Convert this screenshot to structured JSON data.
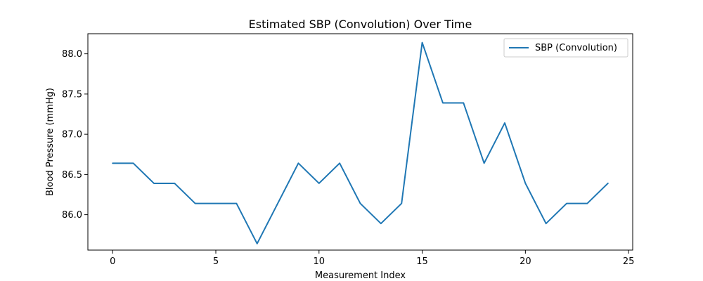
{
  "chart_data": {
    "type": "line",
    "title": "Estimated SBP (Convolution) Over Time",
    "xlabel": "Measurement Index",
    "ylabel": "Blood Pressure (mmHg)",
    "xlim": [
      -1.2,
      25.2
    ],
    "ylim": [
      85.56,
      88.25
    ],
    "x_ticks": [
      0,
      5,
      10,
      15,
      20,
      25
    ],
    "y_ticks": [
      86.0,
      86.5,
      87.0,
      87.5,
      88.0
    ],
    "x_tick_labels": [
      "0",
      "5",
      "10",
      "15",
      "20",
      "25"
    ],
    "y_tick_labels": [
      "86.0",
      "86.5",
      "87.0",
      "87.5",
      "88.0"
    ],
    "grid": false,
    "legend_position": "top-right",
    "series": [
      {
        "name": "SBP (Convolution)",
        "color": "#1f77b4",
        "x": [
          0,
          1,
          2,
          3,
          4,
          5,
          6,
          7,
          8,
          9,
          10,
          11,
          12,
          13,
          14,
          15,
          16,
          17,
          18,
          19,
          20,
          21,
          22,
          23,
          24
        ],
        "y": [
          86.64,
          86.64,
          86.39,
          86.39,
          86.14,
          86.14,
          86.14,
          85.64,
          86.14,
          86.64,
          86.39,
          86.64,
          86.14,
          85.89,
          86.14,
          88.14,
          87.39,
          87.39,
          86.64,
          87.14,
          86.39,
          85.89,
          86.14,
          86.14,
          86.39
        ]
      }
    ]
  }
}
